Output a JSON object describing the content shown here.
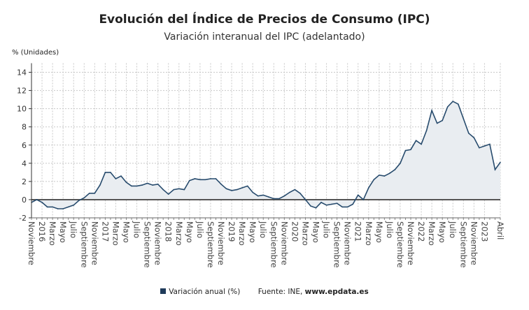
{
  "title": "Evolución del Índice de Precios de Consumo (IPC)",
  "subtitle": "Variación interanual del IPC (adelantado)",
  "legend": {
    "series_label": "Variación anual (%)",
    "source_prefix": "Fuente: INE, ",
    "source_site": "www.epdata.es"
  },
  "colors": {
    "line": "#274b6d",
    "fill": "#e9edf1",
    "zero_line": "#555555",
    "grid": "#c8c8c8"
  },
  "chart_data": {
    "type": "area",
    "title": "Evolución del Índice de Precios de Consumo (IPC)",
    "subtitle": "Variación interanual del IPC (adelantado)",
    "ylabel": "% (Unidades)",
    "ylim": [
      -2,
      15
    ],
    "yticks": [
      -2,
      0,
      2,
      4,
      6,
      8,
      10,
      12,
      14
    ],
    "grid": true,
    "legend_position": "bottom",
    "x_start": "2015-11",
    "x_end": "2023-04",
    "x_tick_labels": [
      {
        "month": "2015-11",
        "label": "Noviembre"
      },
      {
        "month": "2016-01",
        "label": "2016"
      },
      {
        "month": "2016-03",
        "label": "Marzo"
      },
      {
        "month": "2016-05",
        "label": "Mayo"
      },
      {
        "month": "2016-07",
        "label": "Julio"
      },
      {
        "month": "2016-09",
        "label": "Septiembre"
      },
      {
        "month": "2016-11",
        "label": "Noviembre"
      },
      {
        "month": "2017-01",
        "label": "2017"
      },
      {
        "month": "2017-03",
        "label": "Marzo"
      },
      {
        "month": "2017-05",
        "label": "Mayo"
      },
      {
        "month": "2017-07",
        "label": "Julio"
      },
      {
        "month": "2017-09",
        "label": "Septiembre"
      },
      {
        "month": "2017-11",
        "label": "Noviembre"
      },
      {
        "month": "2018-01",
        "label": "2018"
      },
      {
        "month": "2018-03",
        "label": "Marzo"
      },
      {
        "month": "2018-05",
        "label": "Mayo"
      },
      {
        "month": "2018-07",
        "label": "Julio"
      },
      {
        "month": "2018-09",
        "label": "Septiembre"
      },
      {
        "month": "2018-11",
        "label": "Noviembre"
      },
      {
        "month": "2019-01",
        "label": "2019"
      },
      {
        "month": "2019-03",
        "label": "Marzo"
      },
      {
        "month": "2019-05",
        "label": "Mayo"
      },
      {
        "month": "2019-07",
        "label": "Julio"
      },
      {
        "month": "2019-09",
        "label": "Septiembre"
      },
      {
        "month": "2019-11",
        "label": "Noviembre"
      },
      {
        "month": "2020-01",
        "label": "2020"
      },
      {
        "month": "2020-03",
        "label": "Marzo"
      },
      {
        "month": "2020-05",
        "label": "Mayo"
      },
      {
        "month": "2020-07",
        "label": "Julio"
      },
      {
        "month": "2020-09",
        "label": "Septiembre"
      },
      {
        "month": "2020-11",
        "label": "Noviembre"
      },
      {
        "month": "2021-01",
        "label": "2021"
      },
      {
        "month": "2021-03",
        "label": "Marzo"
      },
      {
        "month": "2021-05",
        "label": "Mayo"
      },
      {
        "month": "2021-07",
        "label": "Julio"
      },
      {
        "month": "2021-09",
        "label": "Septiembre"
      },
      {
        "month": "2021-11",
        "label": "Noviembre"
      },
      {
        "month": "2022-01",
        "label": "2022"
      },
      {
        "month": "2022-03",
        "label": "Marzo"
      },
      {
        "month": "2022-05",
        "label": "Mayo"
      },
      {
        "month": "2022-07",
        "label": "Julio"
      },
      {
        "month": "2022-09",
        "label": "Septiembre"
      },
      {
        "month": "2022-11",
        "label": "Noviembre"
      },
      {
        "month": "2023-01",
        "label": "2023"
      },
      {
        "month": "2023-04",
        "label": "Abril"
      }
    ],
    "series": [
      {
        "name": "Variación anual (%)",
        "values": [
          -0.3,
          0.0,
          -0.3,
          -0.8,
          -0.8,
          -1.0,
          -1.0,
          -0.8,
          -0.6,
          -0.1,
          0.2,
          0.7,
          0.7,
          1.6,
          3.0,
          3.0,
          2.3,
          2.6,
          1.9,
          1.5,
          1.5,
          1.6,
          1.8,
          1.6,
          1.7,
          1.1,
          0.6,
          1.1,
          1.2,
          1.1,
          2.1,
          2.3,
          2.2,
          2.2,
          2.3,
          2.3,
          1.7,
          1.2,
          1.0,
          1.1,
          1.3,
          1.5,
          0.8,
          0.4,
          0.5,
          0.3,
          0.1,
          0.1,
          0.4,
          0.8,
          1.1,
          0.7,
          0.0,
          -0.7,
          -0.9,
          -0.3,
          -0.6,
          -0.5,
          -0.4,
          -0.8,
          -0.8,
          -0.5,
          0.5,
          0.0,
          1.3,
          2.2,
          2.7,
          2.6,
          2.9,
          3.3,
          4.0,
          5.4,
          5.5,
          6.5,
          6.1,
          7.6,
          9.8,
          8.4,
          8.7,
          10.2,
          10.8,
          10.5,
          8.9,
          7.3,
          6.8,
          5.7,
          5.9,
          6.1,
          3.3,
          4.1
        ]
      }
    ]
  }
}
